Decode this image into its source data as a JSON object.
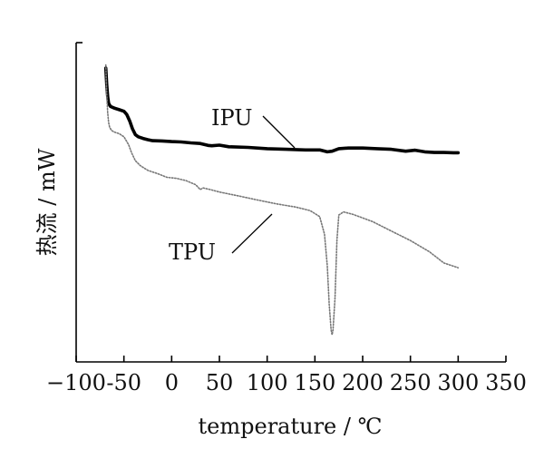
{
  "chart_data": {
    "type": "line",
    "xlabel": "temperature / ℃",
    "ylabel": "热流 / mW",
    "xlim": [
      -100,
      350
    ],
    "xticks": [
      -100,
      -50,
      0,
      50,
      100,
      150,
      200,
      250,
      300,
      350
    ],
    "xtick_labels": [
      "−100",
      "-50",
      "0",
      "50",
      "100",
      "150",
      "200",
      "250",
      "300",
      "350"
    ],
    "y_tick_values_shown": false,
    "ylim": [
      0,
      1
    ],
    "grid": false,
    "series": [
      {
        "name": "IPU",
        "style": "solid-thick",
        "color": "#000000",
        "x": [
          -69,
          -68,
          -67,
          -66,
          -64,
          -60,
          -55,
          -50,
          -47,
          -44,
          -41,
          -38,
          -35,
          -30,
          -25,
          -20,
          -10,
          0,
          10,
          20,
          30,
          38,
          42,
          50,
          60,
          80,
          100,
          120,
          140,
          155,
          163,
          168,
          175,
          185,
          200,
          215,
          230,
          245,
          255,
          265,
          275,
          285,
          295,
          300
        ],
        "values": [
          0.92,
          0.87,
          0.83,
          0.81,
          0.8,
          0.795,
          0.79,
          0.785,
          0.775,
          0.755,
          0.73,
          0.712,
          0.705,
          0.7,
          0.696,
          0.693,
          0.692,
          0.69,
          0.689,
          0.686,
          0.684,
          0.678,
          0.677,
          0.679,
          0.674,
          0.672,
          0.668,
          0.666,
          0.664,
          0.664,
          0.658,
          0.66,
          0.668,
          0.67,
          0.67,
          0.668,
          0.666,
          0.66,
          0.663,
          0.658,
          0.656,
          0.656,
          0.655,
          0.655
        ]
      },
      {
        "name": "TPU",
        "style": "dotted",
        "color": "#777777",
        "x": [
          -69,
          -68,
          -67,
          -66,
          -65,
          -63,
          -60,
          -55,
          -50,
          -45,
          -42,
          -38,
          -33,
          -25,
          -15,
          -5,
          5,
          15,
          25,
          30,
          33,
          40,
          50,
          70,
          90,
          110,
          130,
          145,
          155,
          160,
          163,
          165,
          167,
          168,
          169,
          171,
          173,
          175,
          180,
          190,
          210,
          230,
          250,
          270,
          285,
          300
        ],
        "values": [
          0.93,
          0.84,
          0.78,
          0.75,
          0.735,
          0.725,
          0.72,
          0.715,
          0.705,
          0.68,
          0.655,
          0.63,
          0.615,
          0.6,
          0.59,
          0.578,
          0.575,
          0.568,
          0.555,
          0.54,
          0.545,
          0.54,
          0.532,
          0.52,
          0.507,
          0.495,
          0.485,
          0.474,
          0.455,
          0.4,
          0.3,
          0.18,
          0.1,
          0.085,
          0.1,
          0.2,
          0.38,
          0.46,
          0.47,
          0.462,
          0.44,
          0.41,
          0.38,
          0.345,
          0.31,
          0.295
        ]
      }
    ],
    "annotations": [
      {
        "text": "IPU",
        "target_series": "IPU"
      },
      {
        "text": "TPU",
        "target_series": "TPU"
      }
    ]
  }
}
